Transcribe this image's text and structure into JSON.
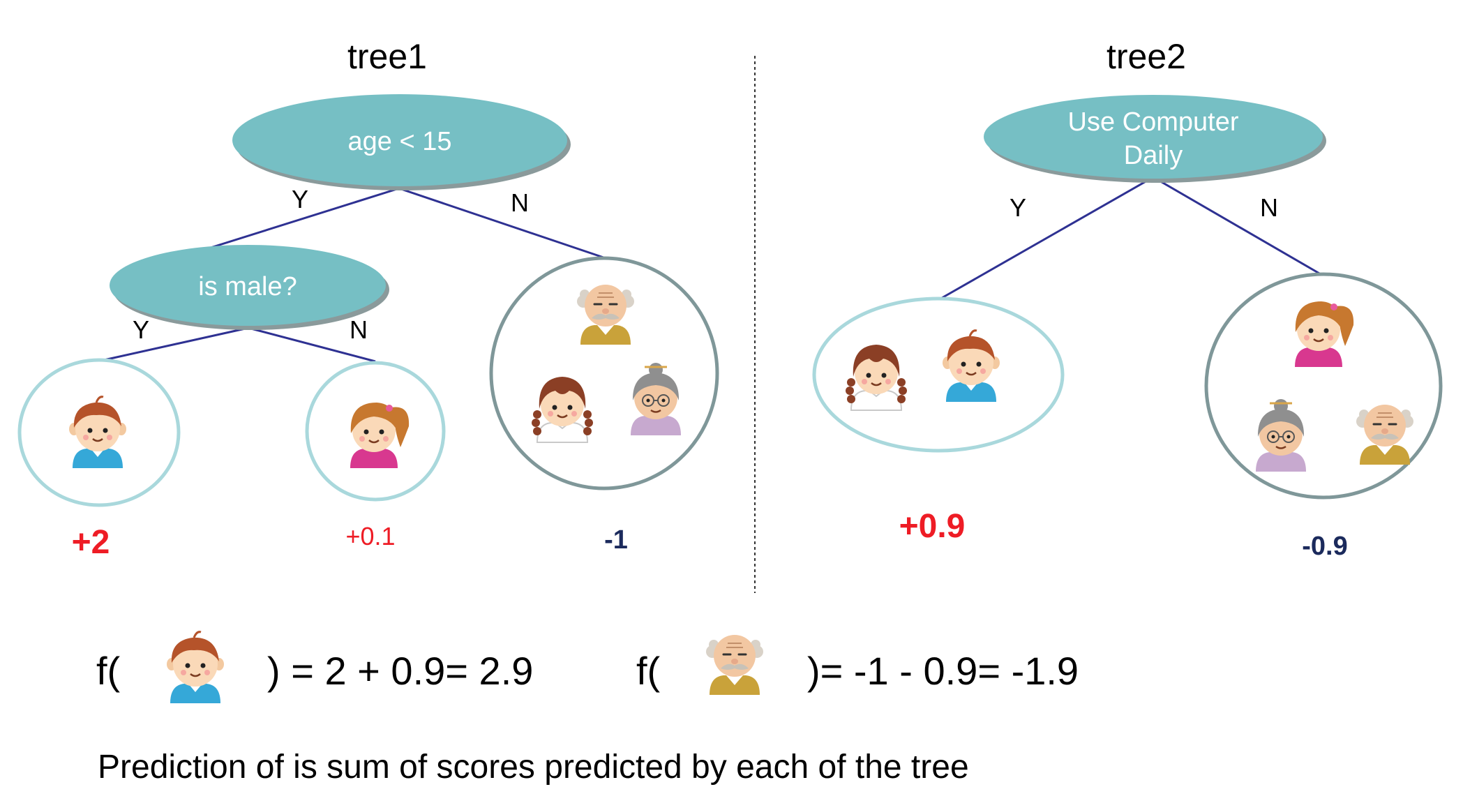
{
  "tree1": {
    "title": "tree1",
    "root": "age < 15",
    "inner": "is male?",
    "edge_labels": {
      "root_yes": "Y",
      "root_no": "N",
      "inner_yes": "Y",
      "inner_no": "N"
    },
    "scores": {
      "leaf_boy": "+2",
      "leaf_girl": "+0.1",
      "leaf_elders": "-1"
    }
  },
  "tree2": {
    "title": "tree2",
    "root_line1": "Use Computer",
    "root_line2": "Daily",
    "edge_labels": {
      "root_yes": "Y",
      "root_no": "N"
    },
    "scores": {
      "leaf_young": "+0.9",
      "leaf_others": "-0.9"
    }
  },
  "formulas": {
    "boy_prefix": "f(",
    "boy_suffix": ") = 2 + 0.9= 2.9",
    "grandpa_prefix": "f(",
    "grandpa_suffix": ")= -1 - 0.9= -1.9"
  },
  "caption": "Prediction of is sum of scores predicted by each of the tree",
  "colors": {
    "node_fill": "#76bfc4",
    "node_shadow": "#8a9a9b",
    "edge": "#2e3192",
    "leaf_light": "#a9d8dc",
    "leaf_dark": "#7f9799",
    "positive": "#ee1c25",
    "negative": "#1b2a5c",
    "divider": "#333333"
  },
  "icons": [
    "boy-icon",
    "girl-icon",
    "woman-icon",
    "grandpa-icon",
    "grandma-icon"
  ]
}
